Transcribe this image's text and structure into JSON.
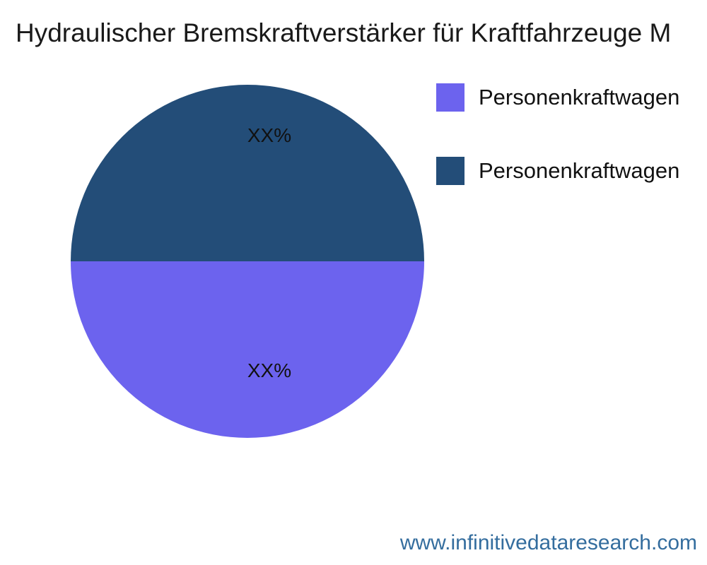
{
  "title": "Hydraulischer Bremskraftverstärker für Kraftfahrzeuge M",
  "footer": {
    "url_text": "www.infinitivedataresearch.com",
    "link_color": "#346d9e"
  },
  "colors": {
    "slice_purple": "#6c63ee",
    "slice_navy": "#234d78",
    "title_text": "#1a1a1a",
    "label_text": "#111111"
  },
  "chart_data": {
    "type": "pie",
    "title": "Hydraulischer Bremskraftverstärker für Kraftfahrzeuge M",
    "slices": [
      {
        "name": "Personenkraftwagen",
        "value": 50,
        "display": "XX%",
        "color": "#6c63ee"
      },
      {
        "name": "Personenkraftwagen",
        "value": 50,
        "display": "XX%",
        "color": "#234d78"
      }
    ],
    "start_angle": 180,
    "direction": "counterclockwise",
    "legend_position": "upper right",
    "notes": "Two equal semicircular slices; top half navy, bottom half purple; percentage labels shown as XX% placeholders"
  }
}
